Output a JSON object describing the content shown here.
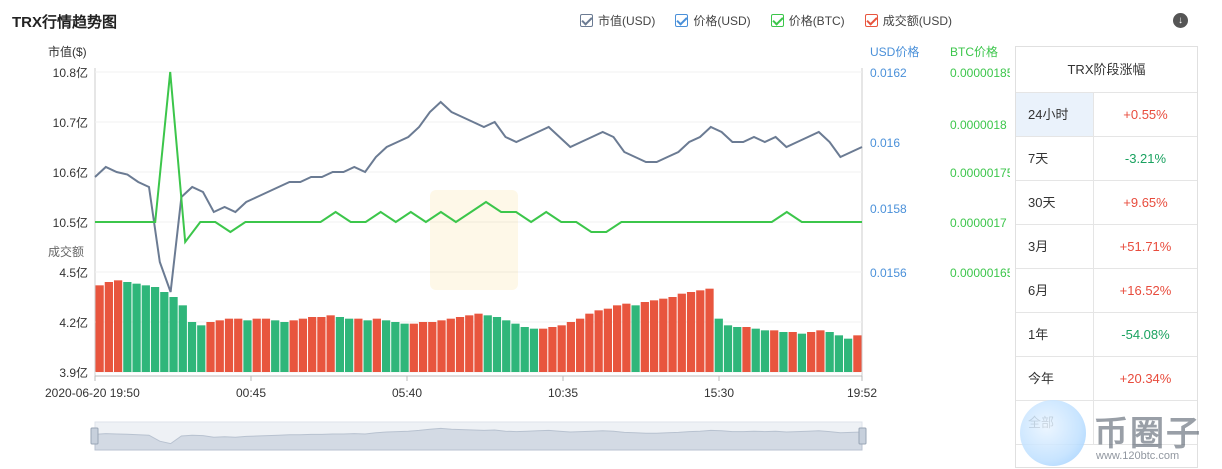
{
  "title": "TRX行情趋势图",
  "legend": [
    {
      "label": "市值(USD)",
      "color": "#6b7b93"
    },
    {
      "label": "价格(USD)",
      "color": "#4a90d9"
    },
    {
      "label": "价格(BTC)",
      "color": "#3cc64b"
    },
    {
      "label": "成交额(USD)",
      "color": "#e8553e"
    }
  ],
  "axes": {
    "market_cap_label": "市值($)",
    "usd_label": "USD价格",
    "btc_label": "BTC价格",
    "volume_label": "成交额",
    "market_cap_ticks": [
      "10.8亿",
      "10.7亿",
      "10.6亿",
      "10.5亿"
    ],
    "volume_ticks": [
      "4.5亿",
      "4.2亿",
      "3.9亿"
    ],
    "usd_ticks": [
      "0.0162",
      "0.016",
      "0.0158",
      "0.0156"
    ],
    "btc_ticks": [
      "0.00000185",
      "0.0000018",
      "0.00000175",
      "0.0000017",
      "0.00000165"
    ],
    "x_ticks": [
      "2020-06-20 19:50",
      "00:45",
      "05:40",
      "10:35",
      "15:30",
      "19:52"
    ]
  },
  "stage_panel": {
    "title": "TRX阶段涨幅",
    "rows": [
      {
        "label": "24小时",
        "value": "+0.55%",
        "dir": "up"
      },
      {
        "label": "7天",
        "value": "-3.21%",
        "dir": "down"
      },
      {
        "label": "30天",
        "value": "+9.65%",
        "dir": "up"
      },
      {
        "label": "3月",
        "value": "+51.71%",
        "dir": "up"
      },
      {
        "label": "6月",
        "value": "+16.52%",
        "dir": "up"
      },
      {
        "label": "1年",
        "value": "-54.08%",
        "dir": "down"
      },
      {
        "label": "今年",
        "value": "+20.34%",
        "dir": "up"
      },
      {
        "label": "全部",
        "value": "",
        "dir": "up"
      }
    ]
  },
  "watermark": {
    "brand": "币圈子",
    "url": "www.120btc.com"
  },
  "chart_data": {
    "type": "line",
    "title": "TRX行情趋势图",
    "x_range": [
      "2020-06-20 19:50",
      "2020-06-21 19:52"
    ],
    "series": [
      {
        "name": "市值(USD)",
        "unit": "亿",
        "ylim": [
          10.5,
          10.8
        ],
        "values": [
          10.59,
          10.61,
          10.6,
          10.595,
          10.58,
          10.57,
          10.42,
          10.36,
          10.55,
          10.57,
          10.56,
          10.52,
          10.53,
          10.52,
          10.54,
          10.55,
          10.56,
          10.57,
          10.58,
          10.58,
          10.59,
          10.59,
          10.6,
          10.6,
          10.61,
          10.6,
          10.63,
          10.65,
          10.66,
          10.67,
          10.69,
          10.72,
          10.74,
          10.72,
          10.71,
          10.7,
          10.69,
          10.7,
          10.67,
          10.66,
          10.67,
          10.68,
          10.69,
          10.67,
          10.65,
          10.66,
          10.67,
          10.68,
          10.67,
          10.64,
          10.63,
          10.62,
          10.62,
          10.63,
          10.64,
          10.66,
          10.67,
          10.69,
          10.68,
          10.66,
          10.66,
          10.67,
          10.66,
          10.67,
          10.65,
          10.66,
          10.67,
          10.68,
          10.66,
          10.63,
          10.64,
          10.65
        ]
      },
      {
        "name": "价格(BTC)",
        "ylim": [
          1.65e-06,
          1.85e-06
        ],
        "values": [
          1.7e-06,
          1.7e-06,
          1.7e-06,
          1.7e-06,
          1.7e-06,
          1.85e-06,
          1.68e-06,
          1.7e-06,
          1.7e-06,
          1.69e-06,
          1.7e-06,
          1.7e-06,
          1.7e-06,
          1.7e-06,
          1.7e-06,
          1.7e-06,
          1.71e-06,
          1.7e-06,
          1.7e-06,
          1.71e-06,
          1.7e-06,
          1.71e-06,
          1.7e-06,
          1.71e-06,
          1.7e-06,
          1.71e-06,
          1.72e-06,
          1.71e-06,
          1.71e-06,
          1.7e-06,
          1.71e-06,
          1.7e-06,
          1.7e-06,
          1.69e-06,
          1.69e-06,
          1.7e-06,
          1.7e-06,
          1.7e-06,
          1.7e-06,
          1.7e-06,
          1.7e-06,
          1.7e-06,
          1.7e-06,
          1.7e-06,
          1.7e-06,
          1.7e-06,
          1.71e-06,
          1.7e-06,
          1.7e-06,
          1.7e-06,
          1.7e-06,
          1.7e-06
        ]
      },
      {
        "name": "成交额(USD)",
        "unit": "亿",
        "ylim": [
          3.9,
          4.5
        ],
        "values": [
          4.42,
          4.44,
          4.45,
          4.44,
          4.43,
          4.42,
          4.41,
          4.38,
          4.35,
          4.3,
          4.2,
          4.18,
          4.2,
          4.21,
          4.22,
          4.22,
          4.21,
          4.22,
          4.22,
          4.21,
          4.2,
          4.21,
          4.22,
          4.23,
          4.23,
          4.24,
          4.23,
          4.22,
          4.22,
          4.21,
          4.22,
          4.21,
          4.2,
          4.19,
          4.19,
          4.2,
          4.2,
          4.21,
          4.22,
          4.23,
          4.24,
          4.25,
          4.24,
          4.23,
          4.21,
          4.19,
          4.17,
          4.16,
          4.16,
          4.17,
          4.18,
          4.2,
          4.22,
          4.25,
          4.27,
          4.28,
          4.3,
          4.31,
          4.3,
          4.32,
          4.33,
          4.34,
          4.35,
          4.37,
          4.38,
          4.39,
          4.4,
          4.22,
          4.18,
          4.17,
          4.17,
          4.16,
          4.15,
          4.15,
          4.14,
          4.14,
          4.13,
          4.14,
          4.15,
          4.14,
          4.12,
          4.1,
          4.12
        ]
      }
    ]
  }
}
